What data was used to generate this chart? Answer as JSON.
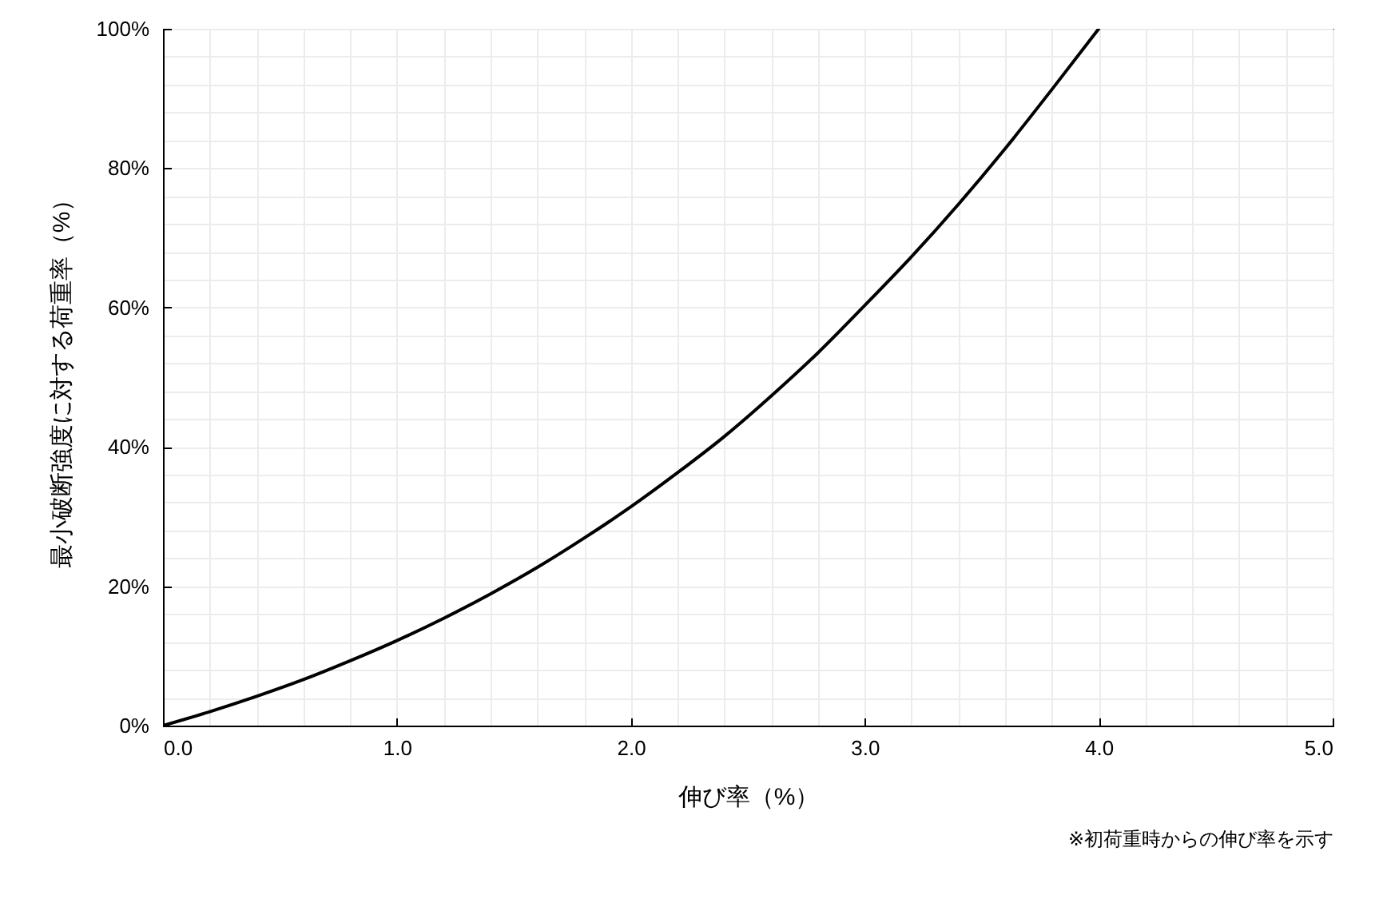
{
  "chart_data": {
    "type": "line",
    "xlabel": "伸び率（%）",
    "ylabel": "最小破断強度に対する荷重率（%）",
    "annotations": [
      "※初荷重時からの伸び率を示す"
    ],
    "x": [
      0,
      0.2,
      0.4,
      0.6,
      0.8,
      1.0,
      1.2,
      1.4,
      1.6,
      1.8,
      2.0,
      2.2,
      2.4,
      2.6,
      2.8,
      3.0,
      3.2,
      3.4,
      3.6,
      3.8,
      4.0
    ],
    "series": [
      {
        "color": "#000000",
        "values": [
          0,
          2.0,
          4.2,
          6.6,
          9.3,
          12.2,
          15.4,
          18.9,
          22.7,
          26.9,
          31.4,
          36.3,
          41.5,
          47.3,
          53.5,
          60.3,
          67.3,
          74.8,
          82.8,
          91.3,
          100
        ]
      }
    ],
    "xlim": [
      0,
      5
    ],
    "ylim": [
      0,
      100
    ],
    "xticks": [
      {
        "value": 0,
        "label": "0.0"
      },
      {
        "value": 0.2,
        "label": null
      },
      {
        "value": 0.4,
        "label": null
      },
      {
        "value": 0.6,
        "label": null
      },
      {
        "value": 0.8,
        "label": null
      },
      {
        "value": 1,
        "label": "1.0"
      },
      {
        "value": 1.2,
        "label": null
      },
      {
        "value": 1.4,
        "label": null
      },
      {
        "value": 1.6,
        "label": null
      },
      {
        "value": 1.8,
        "label": null
      },
      {
        "value": 2,
        "label": "2.0"
      },
      {
        "value": 2.2,
        "label": null
      },
      {
        "value": 2.4,
        "label": null
      },
      {
        "value": 2.6,
        "label": null
      },
      {
        "value": 2.8,
        "label": null
      },
      {
        "value": 3,
        "label": "3.0"
      },
      {
        "value": 3.2,
        "label": null
      },
      {
        "value": 3.4,
        "label": null
      },
      {
        "value": 3.6,
        "label": null
      },
      {
        "value": 3.8,
        "label": null
      },
      {
        "value": 4,
        "label": "4.0"
      },
      {
        "value": 4.2,
        "label": null
      },
      {
        "value": 4.4,
        "label": null
      },
      {
        "value": 4.6,
        "label": null
      },
      {
        "value": 4.8,
        "label": null
      },
      {
        "value": 5,
        "label": "5.0"
      }
    ],
    "yticks": [
      {
        "value": 0,
        "label": "0%"
      },
      {
        "value": 4,
        "label": null
      },
      {
        "value": 8,
        "label": null
      },
      {
        "value": 12,
        "label": null
      },
      {
        "value": 16,
        "label": null
      },
      {
        "value": 20,
        "label": "20%"
      },
      {
        "value": 24,
        "label": null
      },
      {
        "value": 28,
        "label": null
      },
      {
        "value": 32,
        "label": null
      },
      {
        "value": 36,
        "label": null
      },
      {
        "value": 40,
        "label": "40%"
      },
      {
        "value": 44,
        "label": null
      },
      {
        "value": 48,
        "label": null
      },
      {
        "value": 52,
        "label": null
      },
      {
        "value": 56,
        "label": null
      },
      {
        "value": 60,
        "label": "60%"
      },
      {
        "value": 64,
        "label": null
      },
      {
        "value": 68,
        "label": null
      },
      {
        "value": 72,
        "label": null
      },
      {
        "value": 76,
        "label": null
      },
      {
        "value": 80,
        "label": "80%"
      },
      {
        "value": 84,
        "label": null
      },
      {
        "value": 88,
        "label": null
      },
      {
        "value": 92,
        "label": null
      },
      {
        "value": 96,
        "label": null
      },
      {
        "value": 100,
        "label": "100%"
      }
    ],
    "grid": true
  }
}
